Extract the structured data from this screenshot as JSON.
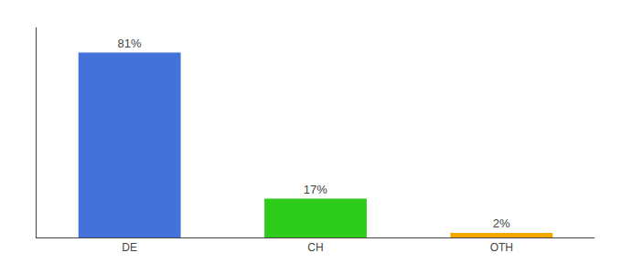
{
  "chart_data": {
    "type": "bar",
    "categories": [
      "DE",
      "CH",
      "OTH"
    ],
    "values": [
      81,
      17,
      2
    ],
    "value_labels": [
      "81%",
      "17%",
      "2%"
    ],
    "data_labels": true,
    "colors": [
      "#4472db",
      "#2ecc1a",
      "#f5a800"
    ],
    "ylim": [
      0,
      92
    ],
    "grid": false,
    "tick_labels": "x"
  }
}
